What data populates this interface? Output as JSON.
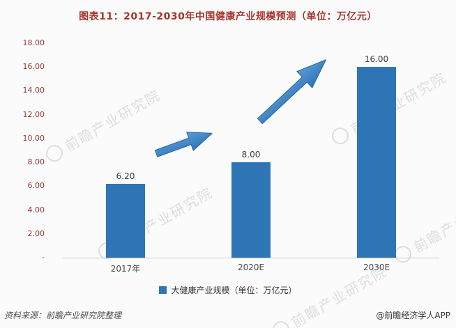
{
  "title": "图表11：2017-2030年中国健康产业规模预测（单位：万亿元）",
  "chart_data": {
    "type": "bar",
    "title": "图表11：2017-2030年中国健康产业规模预测（单位：万亿元）",
    "categories": [
      "2017年",
      "2020E",
      "2030E"
    ],
    "values": [
      6.2,
      8.0,
      16.0
    ],
    "value_labels": [
      "6.20",
      "8.00",
      "16.00"
    ],
    "ylim": [
      0,
      18
    ],
    "ytick_step": 2,
    "yticks": [
      {
        "value": 18,
        "label": "18.00"
      },
      {
        "value": 16,
        "label": "16.00"
      },
      {
        "value": 14,
        "label": "14.00"
      },
      {
        "value": 12,
        "label": "12.00"
      },
      {
        "value": 10,
        "label": "10.00"
      },
      {
        "value": 8,
        "label": "8.00"
      },
      {
        "value": 6,
        "label": "6.00"
      },
      {
        "value": 4,
        "label": "4.00"
      },
      {
        "value": 2,
        "label": "2.00"
      },
      {
        "value": 0,
        "label": "-"
      }
    ],
    "legend": "大健康产业规模（单位：万亿元）",
    "bar_color": "#2e75b6",
    "arrow_color": "#2e75b6",
    "grid": false,
    "legend_position": "bottom",
    "annotations": [
      "growth-arrow between 2017年 and 2020E",
      "growth-arrow between 2020E and 2030E"
    ]
  },
  "footer": {
    "source": "资料来源：前瞻产业研究院整理",
    "credit": "@前瞻经济学人APP"
  },
  "watermark": {
    "text": "前瞻产业研究院"
  },
  "colors": {
    "title": "#a6352c",
    "ytick": "#943634",
    "bar": "#2e75b6"
  }
}
